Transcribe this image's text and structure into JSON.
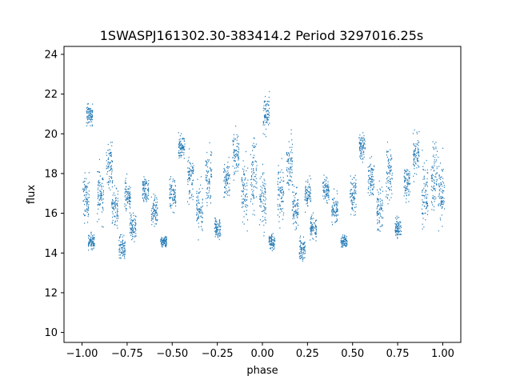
{
  "chart_data": {
    "type": "scatter",
    "title": "1SWASPJ161302.30-383414.2 Period 3297016.25s",
    "xlabel": "phase",
    "ylabel": "flux",
    "xlim": [
      -1.1,
      1.1
    ],
    "ylim": [
      9.5,
      24.4
    ],
    "xticks": [
      -1.0,
      -0.75,
      -0.5,
      -0.25,
      0.0,
      0.25,
      0.5,
      0.75,
      1.0
    ],
    "xtick_labels": [
      "−1.00",
      "−0.75",
      "−0.50",
      "−0.25",
      "0.00",
      "0.25",
      "0.50",
      "0.75",
      "1.00"
    ],
    "yticks": [
      10,
      12,
      14,
      16,
      18,
      20,
      22,
      24
    ],
    "ytick_labels": [
      "10",
      "12",
      "14",
      "16",
      "18",
      "20",
      "22",
      "24"
    ],
    "grid": false,
    "marker_color": "#1f77b4",
    "clusters": [
      {
        "x": -0.98,
        "y": 16.8,
        "spread": 1.1
      },
      {
        "x": -0.95,
        "y": 14.6,
        "spread": 0.4
      },
      {
        "x": -0.96,
        "y": 21.0,
        "spread": 0.5
      },
      {
        "x": -0.9,
        "y": 17.0,
        "spread": 1.3
      },
      {
        "x": -0.85,
        "y": 18.5,
        "spread": 1.2
      },
      {
        "x": -0.82,
        "y": 16.3,
        "spread": 1.0
      },
      {
        "x": -0.78,
        "y": 14.2,
        "spread": 0.6
      },
      {
        "x": -0.75,
        "y": 17.0,
        "spread": 0.8
      },
      {
        "x": -0.72,
        "y": 15.3,
        "spread": 0.6
      },
      {
        "x": -0.65,
        "y": 17.2,
        "spread": 0.6
      },
      {
        "x": -0.6,
        "y": 16.2,
        "spread": 0.7
      },
      {
        "x": -0.55,
        "y": 14.6,
        "spread": 0.3
      },
      {
        "x": -0.5,
        "y": 17.0,
        "spread": 0.9
      },
      {
        "x": -0.45,
        "y": 19.4,
        "spread": 0.6
      },
      {
        "x": -0.4,
        "y": 17.8,
        "spread": 1.0
      },
      {
        "x": -0.35,
        "y": 16.2,
        "spread": 1.2
      },
      {
        "x": -0.3,
        "y": 18.0,
        "spread": 1.3
      },
      {
        "x": -0.25,
        "y": 15.3,
        "spread": 0.5
      },
      {
        "x": -0.2,
        "y": 17.6,
        "spread": 1.0
      },
      {
        "x": -0.15,
        "y": 19.0,
        "spread": 1.0
      },
      {
        "x": -0.1,
        "y": 17.0,
        "spread": 1.5
      },
      {
        "x": -0.05,
        "y": 18.0,
        "spread": 1.8
      },
      {
        "x": 0.0,
        "y": 16.8,
        "spread": 1.5
      },
      {
        "x": 0.02,
        "y": 21.0,
        "spread": 1.0
      },
      {
        "x": 0.05,
        "y": 14.6,
        "spread": 0.4
      },
      {
        "x": 0.1,
        "y": 17.0,
        "spread": 1.3
      },
      {
        "x": 0.15,
        "y": 18.5,
        "spread": 1.2
      },
      {
        "x": 0.18,
        "y": 16.3,
        "spread": 1.0
      },
      {
        "x": 0.22,
        "y": 14.2,
        "spread": 0.6
      },
      {
        "x": 0.25,
        "y": 17.0,
        "spread": 0.8
      },
      {
        "x": 0.28,
        "y": 15.3,
        "spread": 0.6
      },
      {
        "x": 0.35,
        "y": 17.2,
        "spread": 0.6
      },
      {
        "x": 0.4,
        "y": 16.2,
        "spread": 0.7
      },
      {
        "x": 0.45,
        "y": 14.6,
        "spread": 0.3
      },
      {
        "x": 0.5,
        "y": 17.0,
        "spread": 0.9
      },
      {
        "x": 0.55,
        "y": 19.4,
        "spread": 0.6
      },
      {
        "x": 0.6,
        "y": 17.8,
        "spread": 1.0
      },
      {
        "x": 0.65,
        "y": 16.2,
        "spread": 1.2
      },
      {
        "x": 0.7,
        "y": 18.0,
        "spread": 1.3
      },
      {
        "x": 0.75,
        "y": 15.3,
        "spread": 0.5
      },
      {
        "x": 0.8,
        "y": 17.6,
        "spread": 1.0
      },
      {
        "x": 0.85,
        "y": 19.0,
        "spread": 1.0
      },
      {
        "x": 0.9,
        "y": 17.0,
        "spread": 1.5
      },
      {
        "x": 0.95,
        "y": 18.0,
        "spread": 1.8
      },
      {
        "x": 0.99,
        "y": 17.0,
        "spread": 1.5
      }
    ],
    "points_per_cluster": 80
  }
}
